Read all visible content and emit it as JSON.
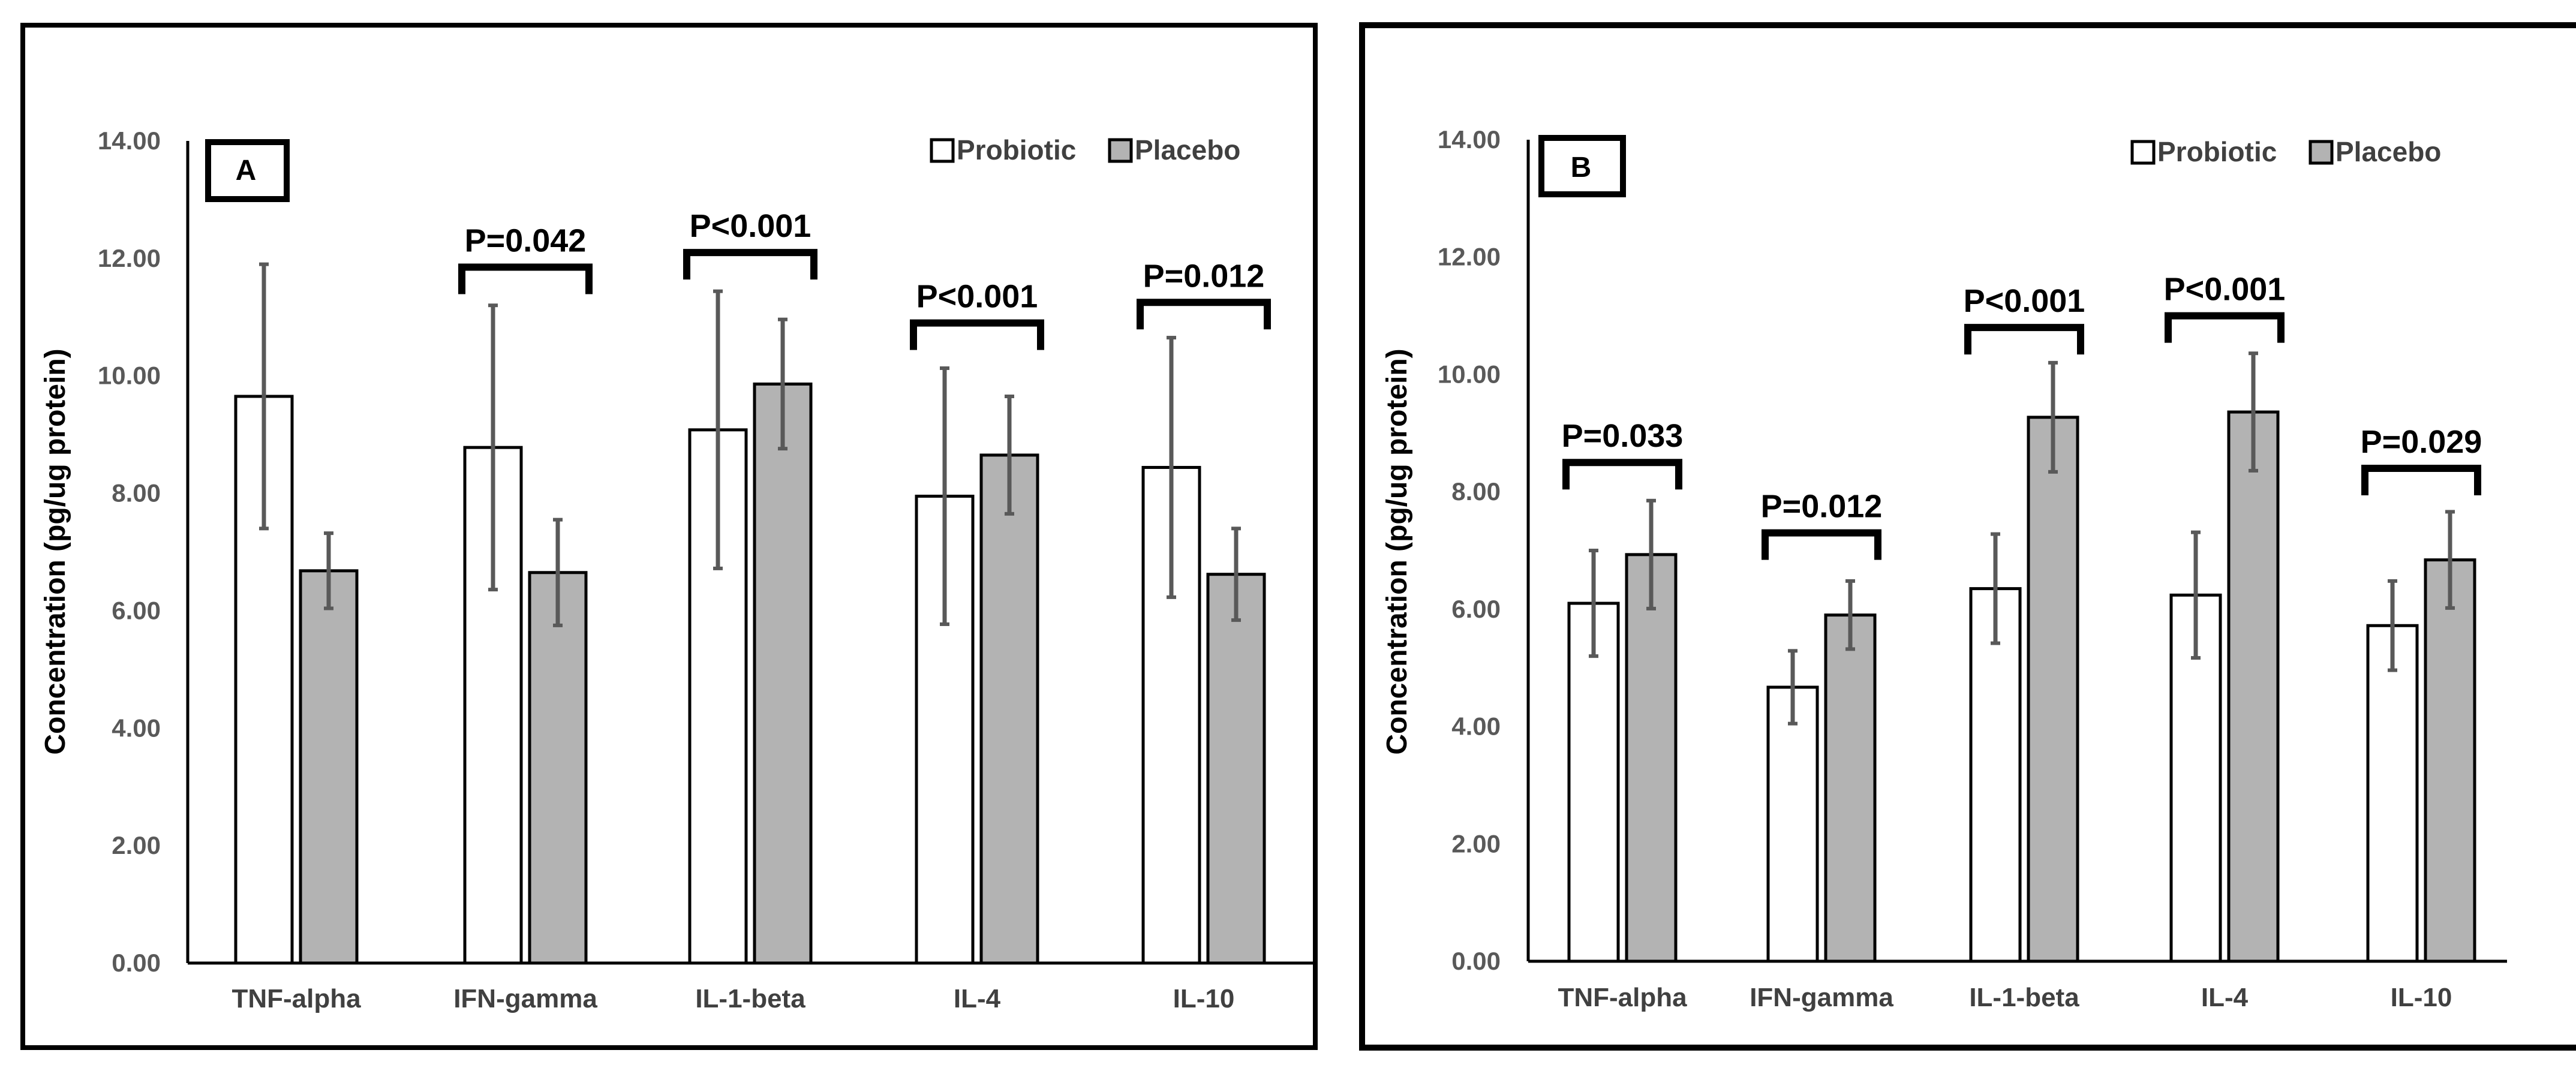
{
  "chart_data": [
    {
      "type": "bar",
      "panel_label": "A",
      "ylabel": "Concentration (pg/ug protein)",
      "xlabel": "",
      "ylim": [
        0,
        14
      ],
      "yticks": [
        "0.00",
        "2.00",
        "4.00",
        "6.00",
        "8.00",
        "10.00",
        "12.00",
        "14.00"
      ],
      "categories": [
        "TNF-alpha",
        "IFN-gamma",
        "IL-1-beta",
        "IL-4",
        "IL-10"
      ],
      "legend_position": "top-right",
      "series": [
        {
          "name": "Probiotic",
          "color": "#ffffff",
          "values": [
            9.65,
            8.78,
            9.08,
            7.95,
            8.44
          ],
          "errors": [
            2.25,
            2.42,
            2.36,
            2.18,
            2.21
          ]
        },
        {
          "name": "Placebo",
          "color": "#b3b3b3",
          "values": [
            6.68,
            6.65,
            9.86,
            8.65,
            6.62
          ],
          "errors": [
            0.64,
            0.9,
            1.1,
            1.0,
            0.78
          ]
        }
      ],
      "annotations": [
        {
          "category_index": 1,
          "text": "P=0.042",
          "y": 11.85
        },
        {
          "category_index": 2,
          "text": "P<0.001",
          "y": 12.1
        },
        {
          "category_index": 3,
          "text": "P<0.001",
          "y": 10.9
        },
        {
          "category_index": 4,
          "text": "P=0.012",
          "y": 11.25
        }
      ]
    },
    {
      "type": "bar",
      "panel_label": "B",
      "ylabel": "Concentration (pg/ug protein)",
      "xlabel": "",
      "ylim": [
        0,
        14
      ],
      "yticks": [
        "0.00",
        "2.00",
        "4.00",
        "6.00",
        "8.00",
        "10.00",
        "12.00",
        "14.00"
      ],
      "categories": [
        "TNF-alpha",
        "IFN-gamma",
        "IL-1-beta",
        "IL-4",
        "IL-10"
      ],
      "legend_position": "top-right",
      "series": [
        {
          "name": "Probiotic",
          "color": "#ffffff",
          "values": [
            6.1,
            4.67,
            6.35,
            6.24,
            5.72
          ],
          "errors": [
            0.9,
            0.62,
            0.93,
            1.07,
            0.76
          ]
        },
        {
          "name": "Placebo",
          "color": "#b3b3b3",
          "values": [
            6.93,
            5.9,
            9.27,
            9.36,
            6.84
          ],
          "errors": [
            0.92,
            0.58,
            0.93,
            1.0,
            0.82
          ]
        }
      ],
      "annotations": [
        {
          "category_index": 0,
          "text": "P=0.033",
          "y": 8.5
        },
        {
          "category_index": 1,
          "text": "P=0.012",
          "y": 7.3
        },
        {
          "category_index": 2,
          "text": "P<0.001",
          "y": 10.8
        },
        {
          "category_index": 3,
          "text": "P<0.001",
          "y": 11.0
        },
        {
          "category_index": 4,
          "text": "P=0.029",
          "y": 8.4
        }
      ]
    }
  ]
}
